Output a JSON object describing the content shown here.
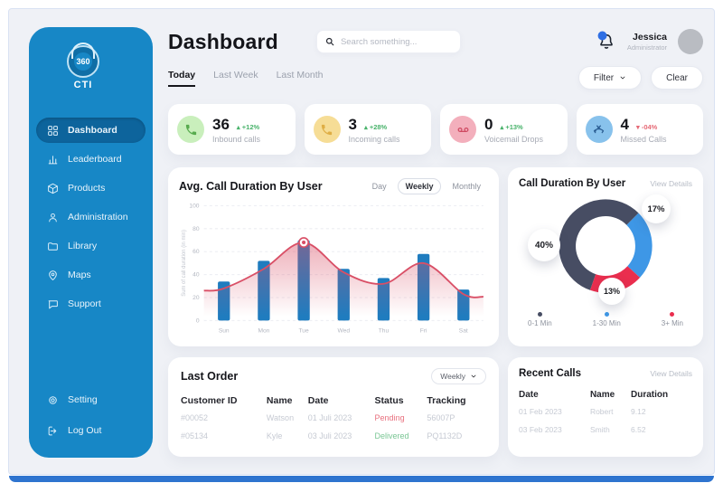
{
  "sidebar": {
    "logo": {
      "badge": "360",
      "name": "CTI"
    },
    "items": [
      {
        "label": "Dashboard",
        "icon": "dashboard-icon",
        "active": true
      },
      {
        "label": "Leaderboard",
        "icon": "leaderboard-icon",
        "active": false
      },
      {
        "label": "Products",
        "icon": "products-icon",
        "active": false
      },
      {
        "label": "Administration",
        "icon": "administration-icon",
        "active": false
      },
      {
        "label": "Library",
        "icon": "library-icon",
        "active": false
      },
      {
        "label": "Maps",
        "icon": "maps-icon",
        "active": false
      },
      {
        "label": "Support",
        "icon": "support-icon",
        "active": false
      }
    ],
    "footer_items": [
      {
        "label": "Setting",
        "icon": "settings-icon"
      },
      {
        "label": "Log Out",
        "icon": "logout-icon"
      }
    ]
  },
  "header": {
    "title": "Dashboard",
    "search_placeholder": "Search something...",
    "user": {
      "name": "Jessica",
      "role": "Administrator"
    }
  },
  "tabs": [
    {
      "label": "Today",
      "active": true
    },
    {
      "label": "Last Week",
      "active": false
    },
    {
      "label": "Last Month",
      "active": false
    }
  ],
  "actions": {
    "filter_label": "Filter",
    "clear_label": "Clear"
  },
  "stats": [
    {
      "value": "36",
      "delta": "+12%",
      "direction": "up",
      "label": "Inbound calls",
      "icon": "inbound-call-icon",
      "icon_bg": "#c9efbc",
      "icon_color": "#57ab4e"
    },
    {
      "value": "3",
      "delta": "+28%",
      "direction": "up",
      "label": "Incoming calls",
      "icon": "incoming-call-icon",
      "icon_bg": "#f6dd96",
      "icon_color": "#dfae45"
    },
    {
      "value": "0",
      "delta": "+13%",
      "direction": "up",
      "label": "Voicemail Drops",
      "icon": "voicemail-icon",
      "icon_bg": "#f3afbc",
      "icon_color": "#cf4a62"
    },
    {
      "value": "4",
      "delta": "-04%",
      "direction": "down",
      "label": "Missed Calls",
      "icon": "missed-call-icon",
      "icon_bg": "#88c2ec",
      "icon_color": "#2c5f94"
    }
  ],
  "chart_data": [
    {
      "id": "avg-call-duration",
      "type": "bar",
      "title": "Avg. Call Duration By User",
      "toggle_options": [
        "Day",
        "Weekly",
        "Monthly"
      ],
      "toggle_selected": "Weekly",
      "categories": [
        "Sun",
        "Mon",
        "Tue",
        "Wed",
        "Thu",
        "Fri",
        "Sat"
      ],
      "series": [
        {
          "name": "Sum of call duration",
          "kind": "bar",
          "values": [
            34,
            52,
            70,
            45,
            37,
            58,
            27
          ],
          "color": "#1f7cbf"
        },
        {
          "name": "Trend",
          "kind": "line",
          "values": [
            28,
            45,
            68,
            42,
            32,
            50,
            23
          ],
          "color": "#d94f66",
          "highlight_index": 2
        }
      ],
      "ylabel": "Sum of call duration (in min)",
      "ylim": [
        0,
        100
      ],
      "yticks": [
        0,
        20,
        40,
        60,
        80,
        100
      ],
      "grid": true
    },
    {
      "id": "call-duration-by-user",
      "type": "pie",
      "title": "Call Duration By User",
      "link_label": "View Details",
      "segments": [
        {
          "label": "0-1 Min",
          "value": 40,
          "display": "40%",
          "color": "#474d63"
        },
        {
          "label": "1-30 Min",
          "value": 17,
          "display": "17%",
          "color": "#3e97e6"
        },
        {
          "label": "3+ Min",
          "value": 13,
          "display": "13%",
          "color": "#ea2e4e"
        }
      ],
      "legend_position": "bottom"
    }
  ],
  "last_order": {
    "title": "Last Order",
    "period_label": "Weekly",
    "columns": [
      "Customer ID",
      "Name",
      "Date",
      "Status",
      "Tracking"
    ],
    "rows": [
      {
        "customer_id": "#00052",
        "name": "Watson",
        "date": "01 Juli 2023",
        "status": "Pending",
        "tracking": "56007P"
      },
      {
        "customer_id": "#05134",
        "name": "Kyle",
        "date": "03 Juli 2023",
        "status": "Delivered",
        "tracking": "PQ1132D"
      }
    ]
  },
  "recent_calls": {
    "title": "Recent Calls",
    "link_label": "View Details",
    "columns": [
      "Date",
      "Name",
      "Duration"
    ],
    "rows": [
      {
        "date": "01 Feb 2023",
        "name": "Robert",
        "duration": "9.12"
      },
      {
        "date": "03 Feb 2023",
        "name": "Smith",
        "duration": "6.52"
      }
    ]
  }
}
